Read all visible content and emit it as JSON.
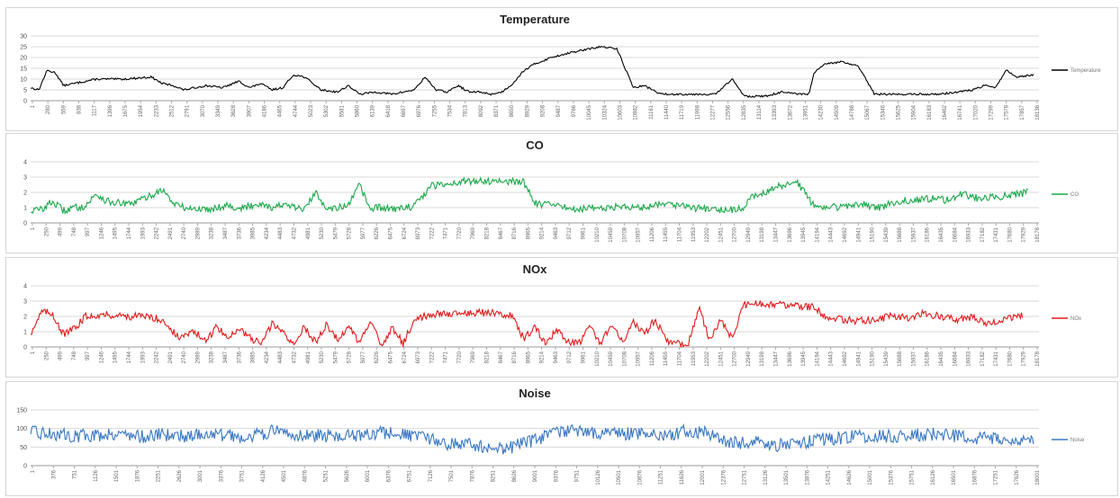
{
  "chart_data": [
    {
      "type": "line",
      "title": "Temperature",
      "color": "#000000",
      "ylim": [
        0,
        30
      ],
      "yticks": [
        0,
        5,
        10,
        15,
        20,
        25,
        30
      ],
      "legend": "Temperature",
      "legend_position": "right",
      "grid": true,
      "x_count": 18400,
      "xtick_labels": [
        "1",
        "280",
        "559",
        "838",
        "1117",
        "1396",
        "1675",
        "1954",
        "2233",
        "2512",
        "2791",
        "3070",
        "3349",
        "3628",
        "3907",
        "4186",
        "4465",
        "4744",
        "5023",
        "5302",
        "5581",
        "5860",
        "6139",
        "6418",
        "6697",
        "6976",
        "7255",
        "7534",
        "7813",
        "8092",
        "8371",
        "8650",
        "8929",
        "9208",
        "9487",
        "9766",
        "10045",
        "10324",
        "10603",
        "10882",
        "11161",
        "11440",
        "11719",
        "11998",
        "12277",
        "12556",
        "12835",
        "13114",
        "13393",
        "13672",
        "13951",
        "14230",
        "14509",
        "14788",
        "15067",
        "15346",
        "15625",
        "15904",
        "16183",
        "16462",
        "16741",
        "17020",
        "17299",
        "17578",
        "17857",
        "18136"
      ],
      "series": [
        {
          "name": "Temperature",
          "x": [
            1,
            150,
            300,
            450,
            600,
            800,
            1200,
            1700,
            2200,
            2400,
            2600,
            2800,
            3000,
            3200,
            3500,
            3800,
            4000,
            4200,
            4400,
            4600,
            4800,
            5000,
            5300,
            5600,
            5800,
            6000,
            6300,
            6600,
            6800,
            7000,
            7200,
            7400,
            7600,
            7800,
            8000,
            8200,
            8400,
            8600,
            8800,
            9000,
            9200,
            9500,
            9800,
            10000,
            10200,
            10400,
            10700,
            11000,
            11200,
            11500,
            11800,
            12100,
            12500,
            12800,
            13000,
            13100,
            13400,
            13700,
            14000,
            14200,
            14300,
            14500,
            14800,
            15100,
            15400,
            15700,
            16000,
            16300,
            16600,
            16900,
            17200,
            17400,
            17600,
            17800,
            18000,
            18300
          ],
          "y": [
            6,
            5,
            14,
            13,
            7,
            8,
            10,
            10,
            11,
            8,
            7,
            5,
            6,
            7,
            6,
            9,
            6,
            8,
            5,
            6,
            12,
            11,
            5,
            4,
            7,
            3,
            4,
            3,
            4,
            5,
            11,
            5,
            4,
            7,
            4,
            4,
            3,
            4,
            8,
            14,
            17,
            20,
            22,
            23,
            24,
            25,
            24,
            6,
            7,
            3,
            3,
            3,
            3,
            10,
            3,
            2,
            2,
            4,
            3,
            3,
            13,
            17,
            18,
            16,
            3,
            3,
            3,
            3,
            3,
            4,
            5,
            7,
            6,
            14,
            11,
            12
          ],
          "_note_x_is_index": "x values are record index (approx)"
        }
      ]
    },
    {
      "type": "line",
      "title": "CO",
      "color": "#1aa84a",
      "ylim": [
        0,
        4
      ],
      "yticks": [
        0,
        1,
        2,
        3,
        4
      ],
      "legend": "CO",
      "legend_position": "right",
      "grid": true,
      "x_count": 18400,
      "xtick_labels": [
        "1",
        "250",
        "499",
        "748",
        "997",
        "1246",
        "1495",
        "1744",
        "1993",
        "2242",
        "2491",
        "2740",
        "2989",
        "3238",
        "3487",
        "3736",
        "3985",
        "4234",
        "4483",
        "4732",
        "4981",
        "5230",
        "5479",
        "5728",
        "5977",
        "6226",
        "6475",
        "6724",
        "6973",
        "7222",
        "7471",
        "7720",
        "7969",
        "8218",
        "8467",
        "8716",
        "8965",
        "9214",
        "9463",
        "9712",
        "9961",
        "10210",
        "10459",
        "10708",
        "10957",
        "11206",
        "11455",
        "11704",
        "11953",
        "12202",
        "12451",
        "12700",
        "12949",
        "13198",
        "13447",
        "13696",
        "13945",
        "14194",
        "14443",
        "14692",
        "14941",
        "15190",
        "15439",
        "15688",
        "15937",
        "16186",
        "16435",
        "16684",
        "16933",
        "17182",
        "17431",
        "17680",
        "17929",
        "18178"
      ],
      "series": [
        {
          "name": "CO",
          "x": [
            1,
            200,
            400,
            600,
            800,
            1000,
            1200,
            1400,
            1600,
            1800,
            2000,
            2200,
            2400,
            2600,
            2800,
            3000,
            3200,
            3400,
            3600,
            3800,
            4000,
            4200,
            4400,
            4600,
            4800,
            5000,
            5200,
            5400,
            5600,
            5800,
            6000,
            6200,
            6400,
            6600,
            6800,
            7000,
            7300,
            7600,
            7900,
            8200,
            8500,
            8800,
            9000,
            9200,
            9400,
            9600,
            9800,
            10000,
            10300,
            10600,
            10900,
            11200,
            11500,
            11800,
            12100,
            12400,
            12700,
            13000,
            13200,
            13400,
            13600,
            13800,
            14000,
            14300,
            14600,
            14900,
            15200,
            15500,
            15800,
            16100,
            16400,
            16700,
            17000,
            17300,
            17600,
            17900,
            18200
          ],
          "y": [
            0.8,
            0.9,
            1.4,
            0.8,
            1.0,
            1.1,
            1.9,
            1.4,
            1.3,
            1.2,
            1.5,
            1.8,
            2.2,
            1.3,
            1.0,
            0.9,
            0.9,
            1.0,
            1.2,
            0.9,
            1.1,
            1.3,
            1.0,
            1.2,
            1.0,
            0.9,
            2.0,
            1.0,
            1.0,
            1.1,
            2.5,
            0.9,
            1.0,
            0.9,
            1.0,
            1.1,
            2.4,
            2.6,
            2.7,
            2.75,
            2.75,
            2.7,
            2.7,
            1.3,
            1.2,
            1.1,
            1.0,
            0.9,
            1.0,
            1.0,
            1.1,
            1.0,
            1.3,
            1.2,
            1.0,
            0.9,
            0.8,
            1.0,
            1.8,
            2.0,
            2.4,
            2.5,
            2.6,
            1.1,
            1.0,
            1.1,
            1.2,
            1.0,
            1.4,
            1.5,
            1.6,
            1.5,
            1.9,
            1.6,
            1.7,
            1.8,
            2.0
          ]
        }
      ]
    },
    {
      "type": "line",
      "title": "NOx",
      "color": "#e01a1a",
      "ylim": [
        0,
        4
      ],
      "yticks": [
        0,
        1,
        2,
        3,
        4
      ],
      "legend": "NOx",
      "legend_position": "right",
      "grid": true,
      "x_count": 18400,
      "xtick_labels": [
        "1",
        "250",
        "499",
        "748",
        "997",
        "1246",
        "1495",
        "1744",
        "1993",
        "2242",
        "2491",
        "2740",
        "2989",
        "3238",
        "3487",
        "3736",
        "3985",
        "4234",
        "4483",
        "4732",
        "4981",
        "5230",
        "5479",
        "5728",
        "5977",
        "6226",
        "6475",
        "6724",
        "6973",
        "7222",
        "7471",
        "7720",
        "7969",
        "8218",
        "8467",
        "8716",
        "8965",
        "9214",
        "9463",
        "9712",
        "9961",
        "10210",
        "10459",
        "10708",
        "10957",
        "11206",
        "11455",
        "11704",
        "11953",
        "12202",
        "12451",
        "12700",
        "12949",
        "13198",
        "13447",
        "13696",
        "13945",
        "14194",
        "14443",
        "14692",
        "14941",
        "15190",
        "15439",
        "15688",
        "15937",
        "16186",
        "16435",
        "16684",
        "16933",
        "17182",
        "17431",
        "17680",
        "17929",
        "18178"
      ],
      "series": [
        {
          "name": "NOx",
          "x": [
            1,
            200,
            400,
            600,
            800,
            1000,
            1200,
            1500,
            1800,
            2100,
            2400,
            2700,
            3000,
            3200,
            3400,
            3600,
            3800,
            4000,
            4200,
            4400,
            4600,
            4800,
            5000,
            5200,
            5400,
            5600,
            5800,
            6000,
            6200,
            6400,
            6600,
            6800,
            7000,
            7300,
            7600,
            8000,
            8400,
            8800,
            9000,
            9200,
            9400,
            9600,
            9800,
            10000,
            10200,
            10400,
            10600,
            10800,
            11000,
            11200,
            11400,
            11600,
            11800,
            12000,
            12200,
            12400,
            12600,
            12800,
            13000,
            13200,
            13600,
            14000,
            14300,
            14500,
            14800,
            15100,
            15400,
            15700,
            16000,
            16300,
            16600,
            16900,
            17200,
            17500,
            17800,
            18100
          ],
          "y": [
            0.9,
            2.3,
            2.2,
            0.8,
            1.2,
            2.0,
            2.1,
            2.1,
            2.0,
            2.0,
            1.8,
            0.6,
            1.0,
            0.3,
            1.4,
            0.5,
            1.3,
            0.6,
            0.2,
            1.5,
            1.0,
            0.2,
            1.3,
            0.3,
            1.5,
            0.5,
            1.3,
            0.3,
            1.6,
            0.1,
            1.3,
            0.2,
            1.8,
            2.1,
            2.2,
            2.25,
            2.25,
            2.1,
            0.5,
            1.3,
            0.2,
            1.1,
            0.3,
            0.2,
            1.3,
            0.3,
            1.5,
            0.3,
            1.6,
            0.8,
            1.8,
            0.4,
            0.2,
            0.2,
            2.5,
            0.4,
            1.8,
            0.5,
            2.7,
            2.8,
            2.8,
            2.7,
            2.6,
            2.0,
            1.8,
            1.7,
            1.8,
            2.0,
            1.9,
            2.2,
            2.0,
            1.8,
            2.0,
            1.5,
            1.8,
            2.1
          ]
        }
      ]
    },
    {
      "type": "line",
      "title": "Noise",
      "color": "#3a78c2",
      "ylim": [
        0,
        150
      ],
      "yticks": [
        0,
        50,
        100,
        150
      ],
      "legend": "Noise",
      "legend_position": "right",
      "grid": true,
      "x_count": 18400,
      "xtick_labels": [
        "1",
        "376",
        "751",
        "1126",
        "1501",
        "1876",
        "2251",
        "2626",
        "3001",
        "3376",
        "3751",
        "4126",
        "4501",
        "4876",
        "5251",
        "5626",
        "6001",
        "6376",
        "6751",
        "7126",
        "7501",
        "7876",
        "8251",
        "8626",
        "9001",
        "9376",
        "9751",
        "10126",
        "10501",
        "10876",
        "11251",
        "11626",
        "12001",
        "12376",
        "12751",
        "13126",
        "13501",
        "13876",
        "14251",
        "14626",
        "15001",
        "15376",
        "15751",
        "16126",
        "16501",
        "16876",
        "17251",
        "17626",
        "18001"
      ],
      "series": [
        {
          "name": "Noise",
          "x": [
            1,
            400,
            800,
            1200,
            1600,
            2000,
            2400,
            2800,
            3200,
            3600,
            4000,
            4400,
            4800,
            5200,
            5600,
            6000,
            6400,
            6800,
            7200,
            7600,
            8000,
            8400,
            8800,
            9200,
            9600,
            10000,
            10400,
            10800,
            11200,
            11600,
            12000,
            12400,
            12800,
            13200,
            13600,
            14000,
            14400,
            14800,
            15200,
            15600,
            16000,
            16400,
            16800,
            17200,
            17600,
            18000,
            18300
          ],
          "y": [
            90,
            85,
            80,
            82,
            88,
            78,
            84,
            80,
            86,
            80,
            78,
            92,
            85,
            80,
            82,
            78,
            88,
            84,
            72,
            60,
            55,
            45,
            50,
            70,
            90,
            95,
            85,
            88,
            82,
            80,
            95,
            85,
            60,
            65,
            55,
            60,
            70,
            75,
            80,
            78,
            82,
            85,
            80,
            75,
            70,
            72,
            68
          ]
        }
      ]
    }
  ]
}
